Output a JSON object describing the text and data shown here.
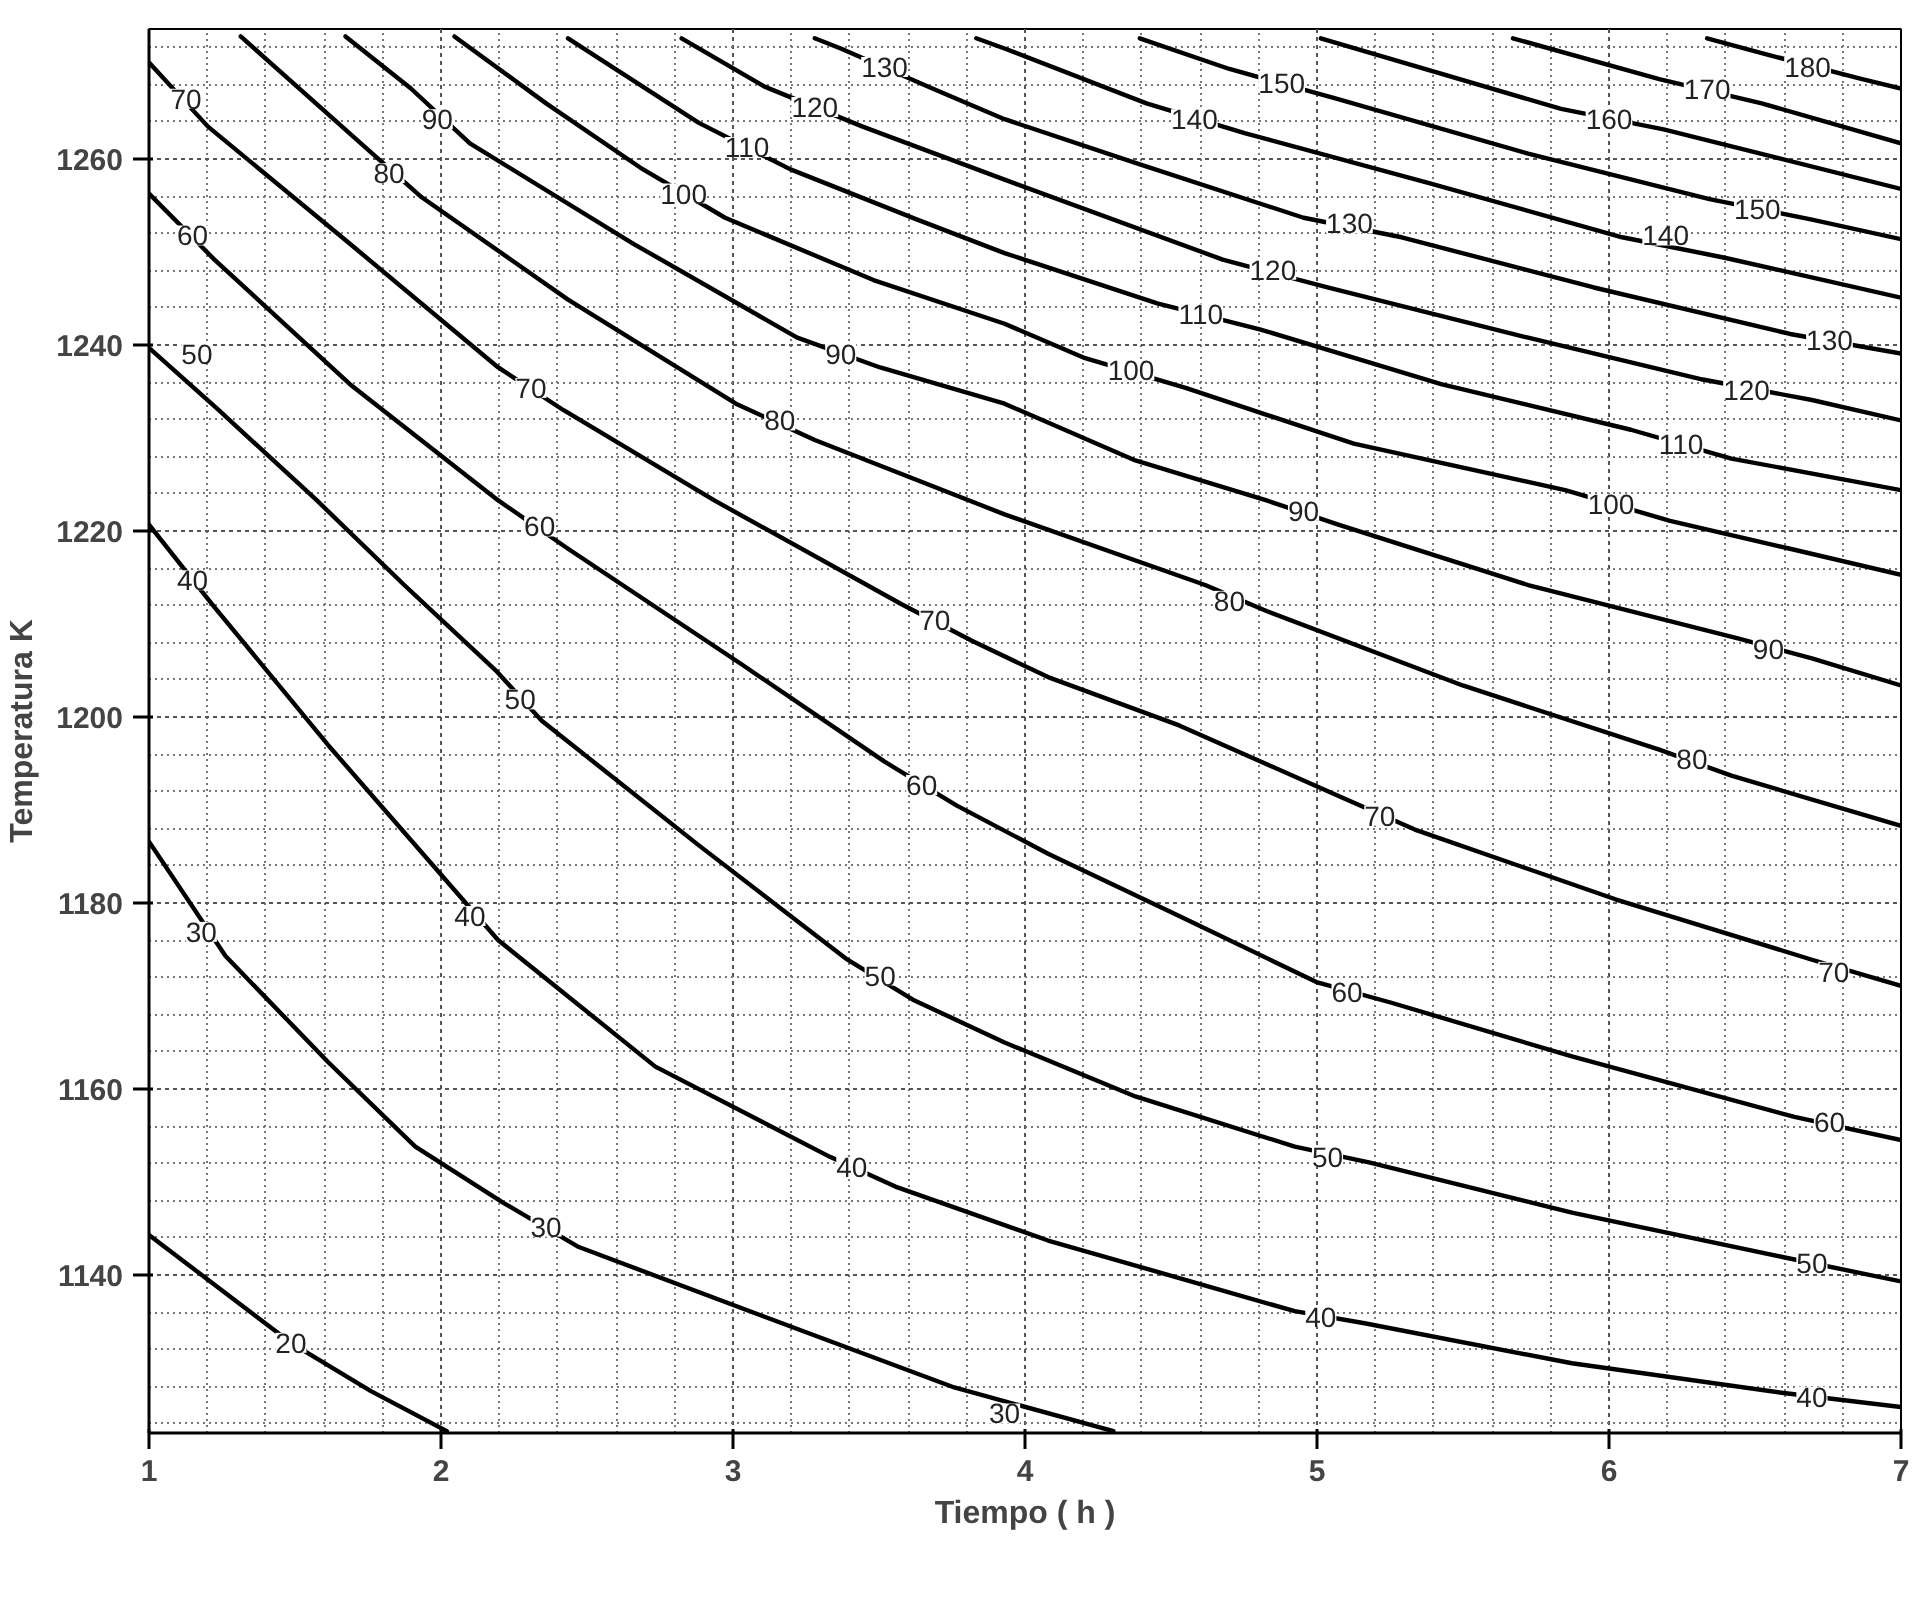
{
  "chart_data": {
    "type": "line",
    "xlabel": "Tiempo ( h )",
    "ylabel": "Temperatura K",
    "xlim": [
      1,
      7
    ],
    "ylim": [
      1123,
      1274
    ],
    "xticks": [
      1,
      2,
      3,
      4,
      5,
      6,
      7
    ],
    "yticks": [
      1140,
      1160,
      1180,
      1200,
      1220,
      1240,
      1260
    ],
    "grid": true,
    "marker": "none",
    "line_style": "solid",
    "series": [
      {
        "color": "#000000",
        "x": [
          1.0,
          1.486,
          1.76,
          2.02
        ],
        "values": [
          1144.3,
          1132.7,
          1127.5,
          1123.2
        ]
      },
      {
        "color": "#000000",
        "x": [
          1.0,
          1.262,
          1.613,
          1.912,
          2.211,
          2.472,
          3.108,
          3.758,
          4.303
        ],
        "values": [
          1186.6,
          1174.3,
          1162.9,
          1153.8,
          1147.8,
          1143.0,
          1135.5,
          1127.9,
          1123.2
        ]
      },
      {
        "color": "#000000",
        "x": [
          1.0,
          1.217,
          1.613,
          2.046,
          2.196,
          2.734,
          3.332,
          3.556,
          4.079,
          4.924,
          5.163,
          5.873,
          6.598,
          7.0
        ],
        "values": [
          1220.7,
          1212.1,
          1197.0,
          1181.4,
          1176.0,
          1162.4,
          1152.7,
          1149.5,
          1143.7,
          1136.1,
          1134.8,
          1130.5,
          1127.3,
          1125.8
        ]
      },
      {
        "color": "#000000",
        "x": [
          1.0,
          1.239,
          1.575,
          1.874,
          2.188,
          2.345,
          2.883,
          3.392,
          3.616,
          3.93,
          4.378,
          4.924,
          5.178,
          5.873,
          6.598,
          7.0
        ],
        "values": [
          1239.7,
          1233.0,
          1223.3,
          1214.2,
          1205.0,
          1199.6,
          1186.2,
          1173.9,
          1169.6,
          1165.0,
          1159.2,
          1153.8,
          1152.1,
          1146.7,
          1141.9,
          1139.3
        ]
      },
      {
        "color": "#000000",
        "x": [
          1.0,
          1.224,
          1.688,
          2.196,
          2.435,
          3.033,
          3.519,
          3.765,
          4.079,
          4.528,
          4.998,
          5.252,
          5.873,
          6.635,
          7.0
        ],
        "values": [
          1256.3,
          1249.2,
          1235.8,
          1223.3,
          1218.1,
          1205.6,
          1195.2,
          1190.5,
          1185.3,
          1178.6,
          1171.5,
          1169.3,
          1163.5,
          1157.0,
          1154.5
        ]
      },
      {
        "color": "#000000",
        "x": [
          1.0,
          1.202,
          1.688,
          2.196,
          2.42,
          2.936,
          3.579,
          3.818,
          4.079,
          4.528,
          5.103,
          5.335,
          6.022,
          6.695,
          7.0
        ],
        "values": [
          1270.4,
          1263.5,
          1250.9,
          1237.6,
          1233.0,
          1223.3,
          1212.1,
          1208.2,
          1204.3,
          1199.1,
          1191.1,
          1187.9,
          1180.4,
          1173.9,
          1171.1
        ]
      },
      {
        "color": "#000000",
        "x": [
          1.314,
          1.74,
          1.934,
          2.435,
          3.01,
          3.28,
          3.93,
          4.617,
          4.827,
          5.499,
          6.172,
          6.419,
          7.0
        ],
        "values": [
          1273.2,
          1261.3,
          1255.9,
          1244.9,
          1233.7,
          1229.8,
          1221.8,
          1214.2,
          1211.4,
          1203.4,
          1196.5,
          1193.7,
          1188.3
        ]
      },
      {
        "color": "#000000",
        "x": [
          1.673,
          1.897,
          2.099,
          2.659,
          3.22,
          3.504,
          3.93,
          4.378,
          4.827,
          5.073,
          5.723,
          6.448,
          6.695,
          7.0
        ],
        "values": [
          1273.2,
          1267.6,
          1261.7,
          1250.9,
          1240.8,
          1237.6,
          1233.7,
          1227.6,
          1223.3,
          1220.7,
          1214.2,
          1208.4,
          1206.3,
          1203.4
        ]
      },
      {
        "color": "#000000",
        "x": [
          2.046,
          2.36,
          2.682,
          2.973,
          3.481,
          3.93,
          4.206,
          4.55,
          5.126,
          5.85,
          6.209,
          6.62,
          7.0
        ],
        "values": [
          1273.2,
          1266.0,
          1259.1,
          1253.7,
          1247.0,
          1242.3,
          1238.6,
          1235.4,
          1229.4,
          1224.4,
          1221.1,
          1218.1,
          1215.3
        ]
      },
      {
        "color": "#000000",
        "x": [
          2.435,
          2.883,
          3.197,
          3.631,
          3.93,
          4.453,
          4.804,
          5.425,
          6.075,
          6.419,
          7.0
        ],
        "values": [
          1273.0,
          1263.9,
          1258.9,
          1253.5,
          1249.9,
          1244.5,
          1241.7,
          1235.8,
          1230.9,
          1227.8,
          1224.4
        ]
      },
      {
        "color": "#000000",
        "x": [
          2.824,
          3.108,
          3.444,
          3.93,
          4.677,
          5.036,
          5.723,
          6.321,
          6.695,
          7.0
        ],
        "values": [
          1273.0,
          1267.8,
          1263.5,
          1257.8,
          1249.2,
          1246.2,
          1240.8,
          1236.3,
          1234.1,
          1231.9
        ]
      },
      {
        "color": "#000000",
        "x": [
          3.28,
          3.369,
          3.683,
          3.93,
          4.378,
          4.954,
          5.29,
          5.948,
          6.62,
          7.0
        ],
        "values": [
          1273.0,
          1271.9,
          1267.6,
          1264.3,
          1259.6,
          1253.7,
          1251.6,
          1246.2,
          1241.2,
          1239.1
        ]
      },
      {
        "color": "#000000",
        "x": [
          3.833,
          3.93,
          4.416,
          4.752,
          5.387,
          6.045,
          6.396,
          7.0
        ],
        "values": [
          1273.0,
          1271.9,
          1266.0,
          1262.8,
          1257.4,
          1251.6,
          1249.4,
          1245.1
        ]
      },
      {
        "color": "#000000",
        "x": [
          4.393,
          4.7,
          5.066,
          5.723,
          6.344,
          6.695,
          7.0
        ],
        "values": [
          1273.0,
          1269.7,
          1266.5,
          1260.6,
          1255.7,
          1253.5,
          1251.4
        ]
      },
      {
        "color": "#000000",
        "x": [
          5.013,
          5.836,
          6.187,
          7.0
        ],
        "values": [
          1273.0,
          1265.4,
          1263.2,
          1256.8
        ]
      },
      {
        "color": "#000000",
        "x": [
          5.671,
          6.172,
          6.523,
          7.0
        ],
        "values": [
          1273.0,
          1268.6,
          1266.0,
          1261.7
        ]
      },
      {
        "color": "#000000",
        "x": [
          6.336,
          6.523,
          6.867,
          7.0
        ],
        "values": [
          1273.0,
          1271.4,
          1268.6,
          1267.6
        ]
      }
    ],
    "annotations": [
      {
        "text": "20",
        "x": 1.486,
        "y": 1132.7
      },
      {
        "text": "30",
        "x": 1.179,
        "y": 1176.9
      },
      {
        "text": "30",
        "x": 2.36,
        "y": 1145.2
      },
      {
        "text": "30",
        "x": 3.93,
        "y": 1125.1
      },
      {
        "text": "40",
        "x": 1.149,
        "y": 1214.7
      },
      {
        "text": "40",
        "x": 2.099,
        "y": 1178.6
      },
      {
        "text": "40",
        "x": 3.407,
        "y": 1151.6
      },
      {
        "text": "40",
        "x": 5.013,
        "y": 1135.5
      },
      {
        "text": "40",
        "x": 6.695,
        "y": 1126.9
      },
      {
        "text": "50",
        "x": 1.164,
        "y": 1239.1
      },
      {
        "text": "50",
        "x": 2.271,
        "y": 1201.9
      },
      {
        "text": "50",
        "x": 3.504,
        "y": 1172.2
      },
      {
        "text": "50",
        "x": 5.036,
        "y": 1152.7
      },
      {
        "text": "50",
        "x": 6.695,
        "y": 1141.3
      },
      {
        "text": "60",
        "x": 1.149,
        "y": 1251.8
      },
      {
        "text": "60",
        "x": 2.338,
        "y": 1220.5
      },
      {
        "text": "60",
        "x": 3.646,
        "y": 1192.7
      },
      {
        "text": "60",
        "x": 5.103,
        "y": 1170.4
      },
      {
        "text": "60",
        "x": 6.755,
        "y": 1156.4
      },
      {
        "text": "70",
        "x": 1.127,
        "y": 1266.5
      },
      {
        "text": "70",
        "x": 2.308,
        "y": 1235.4
      },
      {
        "text": "70",
        "x": 3.691,
        "y": 1210.4
      },
      {
        "text": "70",
        "x": 5.215,
        "y": 1189.4
      },
      {
        "text": "70",
        "x": 6.77,
        "y": 1172.6
      },
      {
        "text": "80",
        "x": 1.822,
        "y": 1258.5
      },
      {
        "text": "80",
        "x": 3.16,
        "y": 1231.9
      },
      {
        "text": "80",
        "x": 4.7,
        "y": 1212.5
      },
      {
        "text": "80",
        "x": 6.284,
        "y": 1195.5
      },
      {
        "text": "90",
        "x": 1.987,
        "y": 1264.3
      },
      {
        "text": "90",
        "x": 3.369,
        "y": 1239.1
      },
      {
        "text": "90",
        "x": 4.954,
        "y": 1222.2
      },
      {
        "text": "90",
        "x": 6.546,
        "y": 1207.3
      },
      {
        "text": "100",
        "x": 2.831,
        "y": 1256.3
      },
      {
        "text": "100",
        "x": 4.363,
        "y": 1237.3
      },
      {
        "text": "100",
        "x": 6.007,
        "y": 1222.9
      },
      {
        "text": "110",
        "x": 3.048,
        "y": 1261.3
      },
      {
        "text": "110",
        "x": 4.602,
        "y": 1243.4
      },
      {
        "text": "110",
        "x": 6.247,
        "y": 1229.4
      },
      {
        "text": "120",
        "x": 3.28,
        "y": 1265.6
      },
      {
        "text": "120",
        "x": 4.849,
        "y": 1248.1
      },
      {
        "text": "120",
        "x": 6.471,
        "y": 1235.2
      },
      {
        "text": "130",
        "x": 3.519,
        "y": 1269.9
      },
      {
        "text": "130",
        "x": 5.111,
        "y": 1253.1
      },
      {
        "text": "130",
        "x": 6.755,
        "y": 1240.6
      },
      {
        "text": "140",
        "x": 4.58,
        "y": 1264.3
      },
      {
        "text": "140",
        "x": 6.194,
        "y": 1251.8
      },
      {
        "text": "150",
        "x": 4.879,
        "y": 1268.2
      },
      {
        "text": "150",
        "x": 6.508,
        "y": 1254.6
      },
      {
        "text": "160",
        "x": 6.0,
        "y": 1264.3
      },
      {
        "text": "170",
        "x": 6.336,
        "y": 1267.6
      },
      {
        "text": "180",
        "x": 6.68,
        "y": 1269.9
      }
    ]
  }
}
